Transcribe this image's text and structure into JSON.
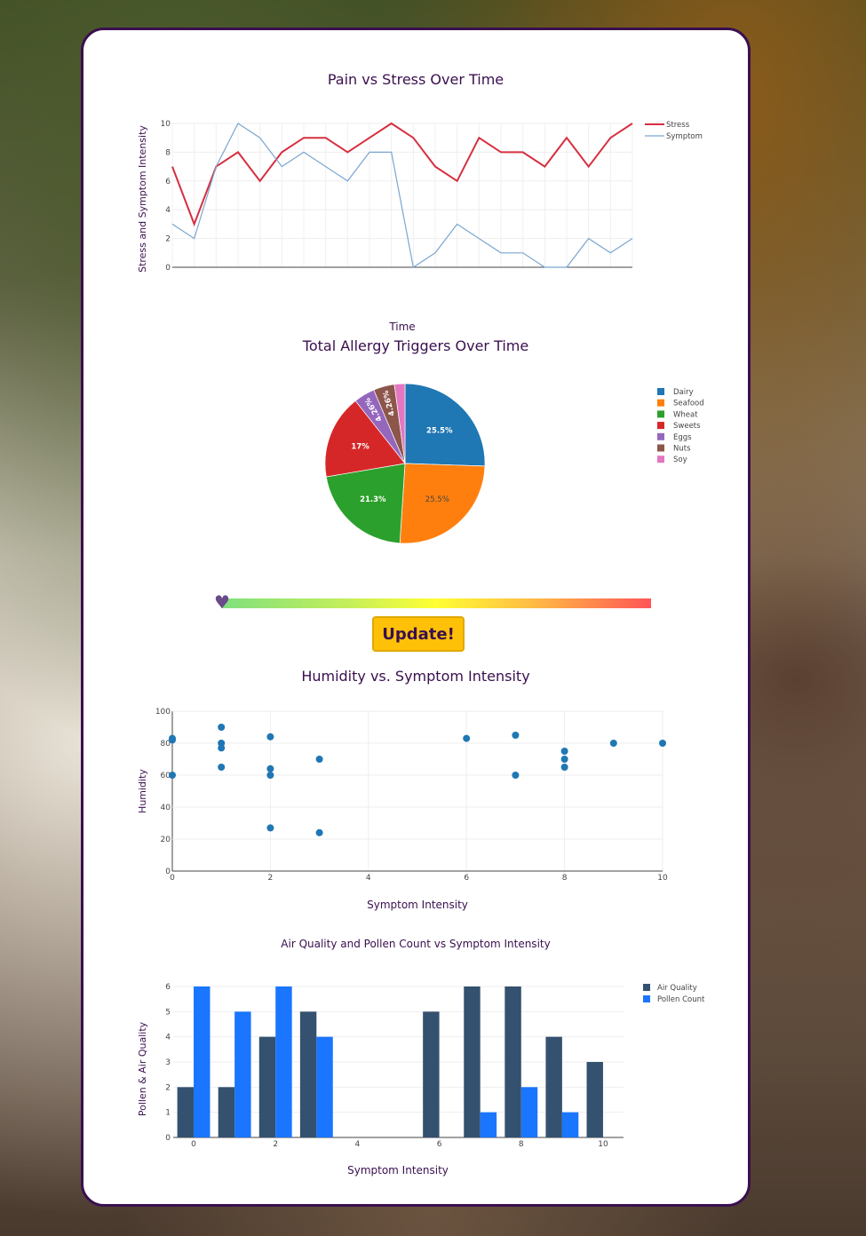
{
  "colors": {
    "accent": "#3a0f4f",
    "button": "#ffc107"
  },
  "slider": {
    "value": 0,
    "icon": "heart-icon"
  },
  "update_button": {
    "label": "Update!"
  },
  "chart_data": [
    {
      "type": "line",
      "title": "Pain vs Stress Over Time",
      "xlabel": "Time",
      "ylabel": "Stress and Symptom Intensity",
      "ylim": [
        0,
        10
      ],
      "yticks": [
        "0",
        "2",
        "4",
        "6",
        "8",
        "10"
      ],
      "legend_position": "top-right",
      "series": [
        {
          "name": "Stress",
          "color": "#d62f3f",
          "values": [
            7,
            3,
            7,
            8,
            6,
            8,
            9,
            9,
            8,
            9,
            10,
            9,
            7,
            6,
            9,
            8,
            8,
            7,
            9,
            7,
            9,
            10
          ]
        },
        {
          "name": "Symptom",
          "color": "#7aa6cf",
          "values": [
            3,
            2,
            7,
            10,
            9,
            7,
            8,
            7,
            6,
            8,
            8,
            0,
            1,
            3,
            2,
            1,
            1,
            0,
            0,
            2,
            1,
            2
          ]
        }
      ]
    },
    {
      "type": "pie",
      "title": "Total Allergy Triggers Over Time",
      "legend_position": "right",
      "slices": [
        {
          "label": "Dairy",
          "value": 25.5,
          "text": "25.5%",
          "color": "#1f77b4"
        },
        {
          "label": "Seafood",
          "value": 25.5,
          "text": "25.5%",
          "color": "#ff7f0e"
        },
        {
          "label": "Wheat",
          "value": 21.3,
          "text": "21.3%",
          "color": "#2ca02c"
        },
        {
          "label": "Sweets",
          "value": 17,
          "text": "17%",
          "color": "#d62728"
        },
        {
          "label": "Eggs",
          "value": 4.26,
          "text": "4.26%",
          "color": "#9467bd"
        },
        {
          "label": "Nuts",
          "value": 4.26,
          "text": "4.26%",
          "color": "#8c564b"
        },
        {
          "label": "Soy",
          "value": 2.13,
          "text": "2.13%",
          "color": "#e377c2"
        }
      ]
    },
    {
      "type": "scatter",
      "title": "Humidity vs. Symptom Intensity",
      "xlabel": "Symptom Intensity",
      "ylabel": "Humidity",
      "xlim": [
        0,
        10
      ],
      "ylim": [
        0,
        100
      ],
      "xticks": [
        "0",
        "2",
        "4",
        "6",
        "8",
        "10"
      ],
      "yticks": [
        "0",
        "20",
        "40",
        "60",
        "80",
        "100"
      ],
      "color": "#1f77b4",
      "points": [
        [
          0,
          83
        ],
        [
          0,
          82
        ],
        [
          0,
          60
        ],
        [
          1,
          90
        ],
        [
          1,
          80
        ],
        [
          1,
          77
        ],
        [
          1,
          65
        ],
        [
          2,
          84
        ],
        [
          2,
          64
        ],
        [
          2,
          60
        ],
        [
          2,
          27
        ],
        [
          3,
          70
        ],
        [
          3,
          24
        ],
        [
          6,
          83
        ],
        [
          7,
          85
        ],
        [
          7,
          60
        ],
        [
          8,
          75
        ],
        [
          8,
          70
        ],
        [
          8,
          65
        ],
        [
          9,
          80
        ],
        [
          10,
          80
        ]
      ]
    },
    {
      "type": "bar",
      "title": "Air Quality and Pollen Count vs Symptom Intensity",
      "xlabel": "Symptom Intensity",
      "ylabel": "Pollen & Air Quality",
      "xlim": [
        -0.5,
        10.5
      ],
      "ylim": [
        0,
        6
      ],
      "xticks": [
        "0",
        "2",
        "4",
        "6",
        "8",
        "10"
      ],
      "yticks": [
        "0",
        "1",
        "2",
        "3",
        "4",
        "5",
        "6"
      ],
      "legend_position": "top-right",
      "x": [
        0,
        1,
        2,
        3,
        4,
        5,
        6,
        7,
        8,
        9,
        10
      ],
      "series": [
        {
          "name": "Air Quality",
          "color": "#34516f",
          "values": [
            2,
            2,
            4,
            5,
            0,
            0,
            5,
            6,
            6,
            4,
            3
          ]
        },
        {
          "name": "Pollen Count",
          "color": "#1a75ff",
          "values": [
            6,
            5,
            6,
            4,
            0,
            0,
            0,
            1,
            2,
            1,
            0
          ]
        }
      ]
    }
  ]
}
